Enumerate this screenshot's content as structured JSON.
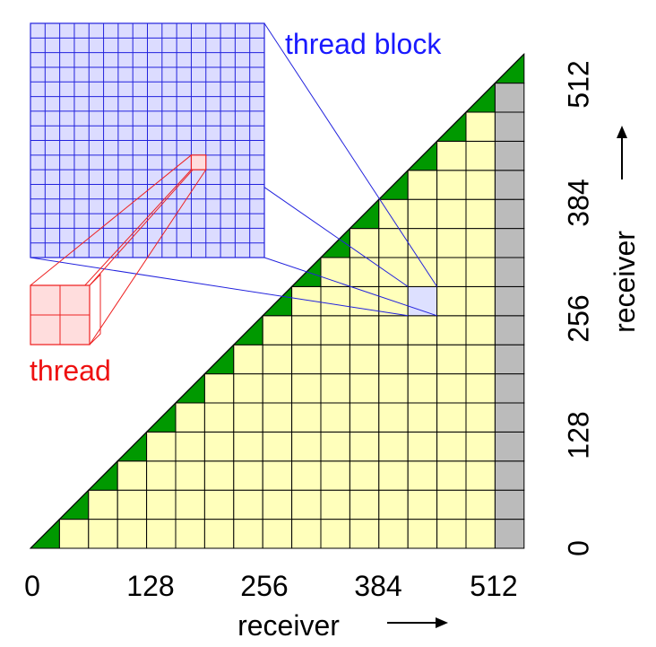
{
  "labels": {
    "thread_block": "thread block",
    "thread": "thread"
  },
  "axes": {
    "x": {
      "title": "receiver",
      "ticks": [
        "0",
        "128",
        "256",
        "384",
        "512"
      ]
    },
    "y": {
      "title": "receiver",
      "ticks": [
        "0",
        "128",
        "256",
        "384",
        "512"
      ]
    }
  },
  "grid": {
    "blocks_per_side": 17,
    "diagonal_block_color": "#009900",
    "block_fill": "#ffffbb",
    "padding_column_color": "#bbbbbb",
    "highlighted_block": {
      "column": 13,
      "row": 8,
      "fill": "#dde0ff"
    }
  },
  "block_zoom": {
    "threads_per_side": 16,
    "fill": "#dcdcff",
    "stroke": "#2222dd"
  },
  "thread_zoom": {
    "cells_per_side": 2,
    "fill": "#ffdddd",
    "stroke": "#ee2222"
  },
  "colors": {
    "thread_block_label": "#1a1aff",
    "thread_label": "#ee1111",
    "grid_line": "#000000"
  }
}
